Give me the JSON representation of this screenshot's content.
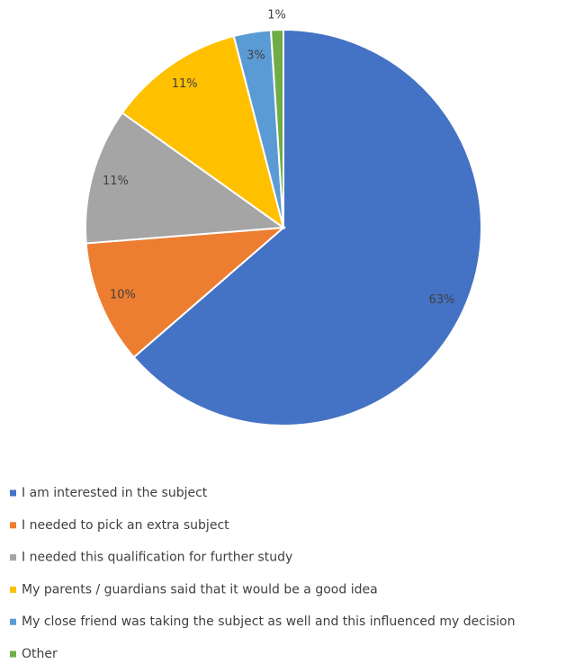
{
  "chart_data": {
    "type": "pie",
    "categories": [
      "I am interested in the subject",
      "I needed to pick an extra subject",
      "I needed this qualification for further study",
      "My parents / guardians said that it would be a good idea",
      "My close friend was taking the subject as well and this influenced my decision",
      "Other"
    ],
    "values": [
      63,
      10,
      11,
      11,
      3,
      1
    ],
    "value_labels": [
      "63%",
      "10%",
      "11%",
      "11%",
      "3%",
      "1%"
    ],
    "colors": [
      "#4472c4",
      "#ed7d31",
      "#a5a5a5",
      "#ffc000",
      "#5b9bd5",
      "#70ad47"
    ],
    "legend": "bottom"
  }
}
